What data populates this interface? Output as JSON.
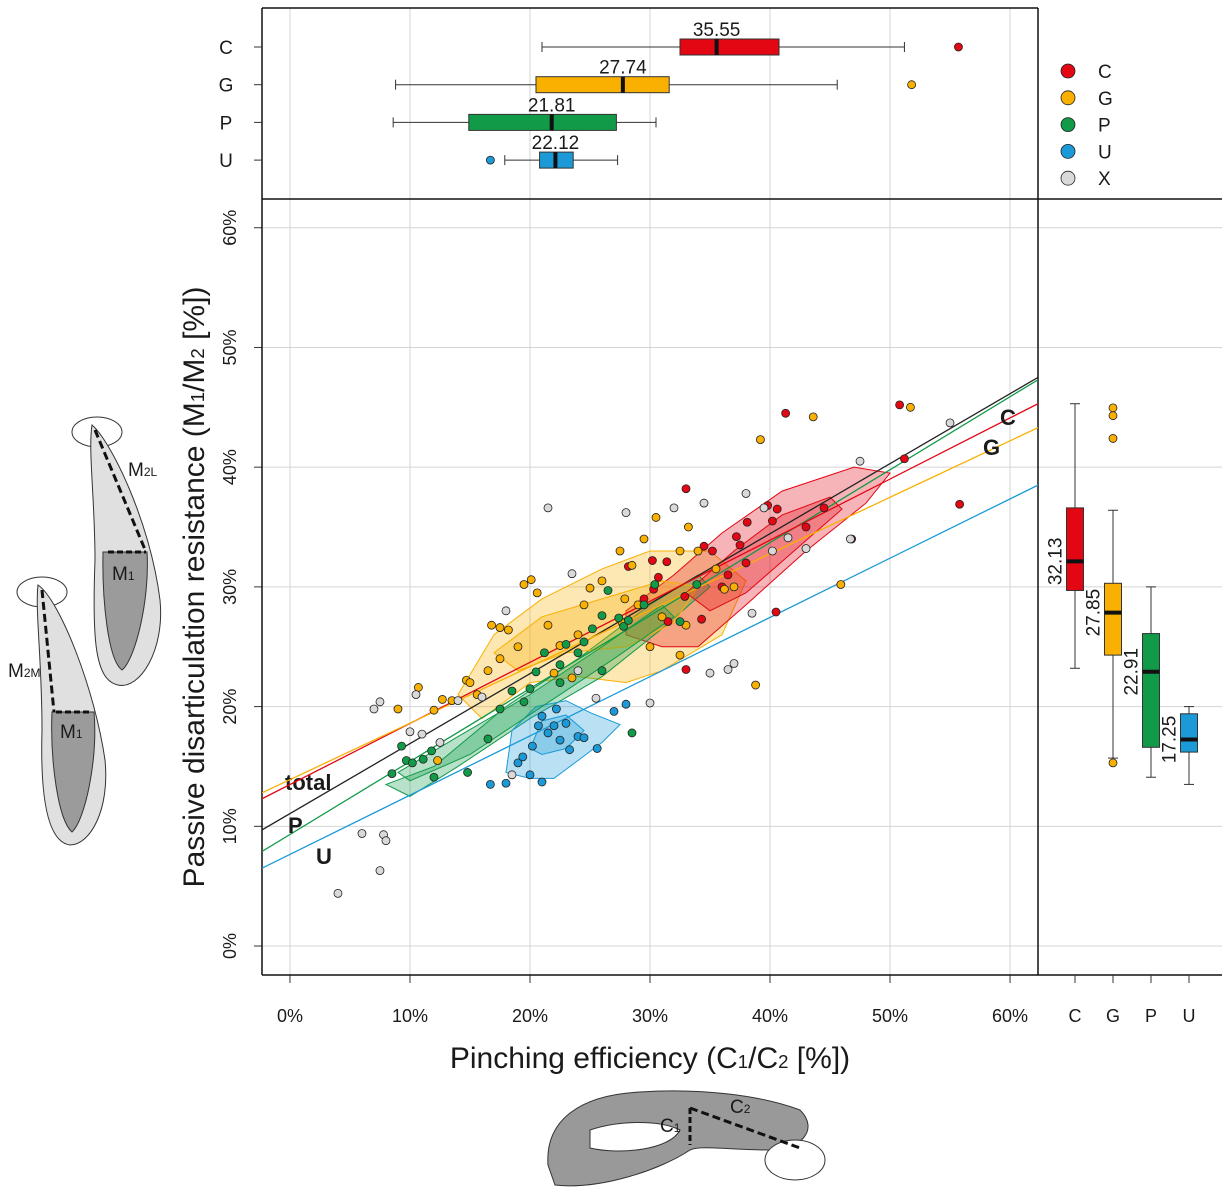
{
  "chart_data": [
    {
      "type": "scatter",
      "x_label": [
        "Pinching efficiency (C",
        "1",
        "/C",
        "2",
        " [%])"
      ],
      "y_label": [
        "Passive disarticulation resistance (M",
        "1",
        "/M",
        "2",
        " [%])"
      ],
      "xlim": [
        -2.33,
        62.33
      ],
      "ylim": [
        -2.42,
        62.4
      ],
      "xticks": [
        {
          "value": 0,
          "label": "0%"
        },
        {
          "value": 10,
          "label": "10%"
        },
        {
          "value": 20,
          "label": "20%"
        },
        {
          "value": 30,
          "label": "30%"
        },
        {
          "value": 40,
          "label": "40%"
        },
        {
          "value": 50,
          "label": "50%"
        },
        {
          "value": 60,
          "label": "60%"
        }
      ],
      "yticks": [
        {
          "value": 0,
          "label": "0%"
        },
        {
          "value": 10,
          "label": "10%"
        },
        {
          "value": 20,
          "label": "20%"
        },
        {
          "value": 30,
          "label": "30%"
        },
        {
          "value": 40,
          "label": "40%"
        },
        {
          "value": 50,
          "label": "50%"
        },
        {
          "value": 60,
          "label": "60%"
        }
      ],
      "grid": true,
      "legend": "top-right",
      "regions": [
        {
          "color": "#f9b000",
          "x": [
            14,
            17,
            21,
            26,
            30,
            35,
            38,
            36,
            31,
            28,
            24,
            20,
            16
          ],
          "y": [
            21,
            26,
            29,
            31.5,
            33,
            33,
            30.5,
            26,
            23,
            22,
            22.5,
            22,
            19
          ]
        },
        {
          "color": "#e30613",
          "x": [
            28,
            32,
            36,
            41,
            47,
            50,
            48,
            43,
            38,
            34,
            31,
            28
          ],
          "y": [
            28,
            31,
            34.5,
            38,
            40,
            39.5,
            37,
            33,
            28.5,
            25,
            25,
            26
          ]
        },
        {
          "color": "#119a48",
          "x": [
            8,
            12,
            18,
            24,
            30,
            34,
            35,
            31,
            26,
            20,
            14,
            10
          ],
          "y": [
            13.5,
            15,
            20,
            24,
            28.5,
            31,
            30,
            26.5,
            22.5,
            19,
            15,
            12.5
          ]
        },
        {
          "color": "#1b9ad7",
          "x": [
            18,
            18.5,
            20.5,
            23,
            25,
            27.5,
            26,
            24,
            22,
            20
          ],
          "y": [
            14.5,
            18,
            20,
            20.5,
            19.5,
            18.5,
            17,
            15.5,
            14,
            14
          ]
        },
        {
          "color": "#f9b000",
          "x": [
            17,
            21,
            26,
            31,
            34,
            32,
            28,
            23,
            19
          ],
          "y": [
            24.5,
            27.5,
            29,
            30.5,
            30,
            27,
            25,
            24.5,
            23
          ]
        },
        {
          "color": "#e30613",
          "x": [
            33,
            37,
            41,
            45,
            46,
            42,
            38,
            35
          ],
          "y": [
            29.5,
            33,
            36,
            37.5,
            36.5,
            33,
            29.5,
            28
          ]
        },
        {
          "color": "#119a48",
          "x": [
            9,
            14,
            20,
            26,
            31,
            32,
            27,
            21,
            15,
            10
          ],
          "y": [
            14.5,
            17.5,
            21,
            25,
            28.5,
            27.5,
            24,
            20,
            16,
            13.8
          ]
        },
        {
          "color": "#1b9ad7",
          "x": [
            20,
            21,
            23,
            24.5,
            23,
            21
          ],
          "y": [
            16.5,
            18.8,
            19.3,
            18,
            16.5,
            16
          ]
        }
      ],
      "fits": [
        {
          "label": "total",
          "color": "#222222",
          "x": [
            -2.33,
            62.33
          ],
          "y": [
            9.7,
            47.5
          ]
        },
        {
          "label": "P",
          "color": "#119a48",
          "x": [
            -2.33,
            62.33
          ],
          "y": [
            7.9,
            47.3
          ]
        },
        {
          "label": "U",
          "color": "#1b9ad7",
          "x": [
            -2.33,
            62.33
          ],
          "y": [
            6.5,
            38.5
          ]
        },
        {
          "label": "C",
          "color": "#e30613",
          "x": [
            -2.33,
            62.33
          ],
          "y": [
            12.3,
            45.3
          ]
        },
        {
          "label": "G",
          "color": "#f9b000",
          "x": [
            -2.33,
            62.33
          ],
          "y": [
            12.8,
            43.3
          ]
        }
      ],
      "series": [
        {
          "name": "C",
          "color": "#e30613",
          "x": [
            33,
            41.3,
            50.8,
            51.2,
            55.8,
            46.8,
            40.6,
            40.2,
            38.1,
            37.2,
            34.5,
            35.2,
            30.2,
            31.4,
            28.2,
            30.7,
            30.3,
            32.9,
            31.5,
            34.3,
            40.5,
            38,
            39.8,
            44.5,
            33,
            36,
            29.5,
            37.5,
            36.5,
            43
          ],
          "y": [
            38.2,
            44.5,
            45.2,
            40.7,
            36.9,
            34,
            36.5,
            35.5,
            35.4,
            34.2,
            33.4,
            33,
            32.2,
            32.1,
            31.7,
            30.8,
            29.8,
            29.2,
            27.1,
            27.3,
            27.9,
            32,
            36.8,
            36.6,
            23.1,
            30,
            29,
            33.5,
            31,
            35
          ]
        },
        {
          "name": "G",
          "color": "#f9b000",
          "x": [
            39.2,
            43.6,
            51.7,
            38.8,
            45.9,
            9,
            10.7,
            12,
            12.7,
            13.5,
            14.7,
            15,
            16.5,
            16.8,
            17.5,
            18.2,
            19,
            19.5,
            20.1,
            20.6,
            21.5,
            22.5,
            23.5,
            24.5,
            25,
            26,
            27.5,
            27.9,
            28.5,
            29.5,
            30.5,
            31,
            32.5,
            33.2,
            34,
            35.5,
            36.2,
            37,
            15.6,
            17.5,
            22,
            24,
            29,
            33,
            32.5,
            30,
            27.7,
            12.3
          ],
          "y": [
            42.3,
            44.2,
            45,
            21.8,
            30.2,
            19.8,
            21.6,
            19.7,
            20.6,
            20.5,
            22.2,
            22,
            23,
            26.8,
            26.6,
            26.4,
            25,
            30.2,
            30.6,
            29.5,
            26.8,
            25.1,
            22.4,
            28.5,
            29.9,
            30.5,
            33,
            29,
            31.8,
            34,
            35.8,
            27.5,
            33,
            35,
            33,
            31.5,
            29.8,
            30,
            21,
            24,
            22.8,
            26,
            28.5,
            26.8,
            24.3,
            25,
            27,
            15.5
          ]
        },
        {
          "name": "P",
          "color": "#119a48",
          "x": [
            8.5,
            9.3,
            9.7,
            10.2,
            11.1,
            11.8,
            12,
            14.8,
            16.5,
            17.5,
            18.5,
            19.5,
            20.5,
            21.2,
            22.5,
            23,
            24.5,
            25.2,
            26,
            26.5,
            27.4,
            27.8,
            28.2,
            29.5,
            30.4,
            32.5,
            33.9,
            26,
            22.5,
            20,
            28.5,
            24
          ],
          "y": [
            14.4,
            16.7,
            15.5,
            15.3,
            15.6,
            16.3,
            14.1,
            14.5,
            17.3,
            19.8,
            21.3,
            20.4,
            22.9,
            24.5,
            23.5,
            25.2,
            25.4,
            26.5,
            27.6,
            29.7,
            27.4,
            26.7,
            27.2,
            28.5,
            30.2,
            27.1,
            30.2,
            23,
            22,
            21.5,
            17.8,
            24.5
          ]
        },
        {
          "name": "U",
          "color": "#1b9ad7",
          "x": [
            16.7,
            18,
            19,
            19.4,
            20.2,
            20.7,
            21,
            21.5,
            22,
            22.5,
            23,
            23.3,
            24,
            24.5,
            21,
            25.6,
            27,
            28,
            22.2,
            20
          ],
          "y": [
            13.5,
            13.6,
            15.3,
            15.8,
            16.7,
            18.4,
            19.2,
            17.8,
            18.4,
            17.2,
            18.6,
            16.4,
            17.5,
            17.4,
            13.7,
            16.5,
            19.6,
            20.2,
            19.8,
            14.3
          ]
        },
        {
          "name": "X",
          "color": "#d9d9d9",
          "x": [
            4,
            7.5,
            6,
            7.8,
            8,
            7,
            7.5,
            10.5,
            11,
            10,
            12.5,
            14,
            16,
            21.5,
            23.5,
            24,
            25.5,
            28,
            32,
            34.5,
            38,
            38.5,
            39.5,
            40.2,
            41.5,
            43,
            46.7,
            47.5,
            55,
            36.5,
            37,
            18.5,
            30,
            35,
            18
          ],
          "y": [
            4.4,
            6.3,
            9.4,
            9.3,
            8.8,
            19.8,
            20.4,
            21,
            17.7,
            17.9,
            17,
            20.5,
            20.8,
            36.6,
            31.1,
            23,
            20.7,
            36.2,
            36.6,
            37,
            37.8,
            27.8,
            36.6,
            33,
            34.1,
            33.2,
            34,
            40.5,
            43.7,
            23.1,
            23.6,
            14.3,
            20.3,
            22.8,
            28
          ]
        }
      ]
    },
    {
      "type": "box",
      "orientation": "horizontal",
      "xlim": [
        -2.33,
        62.33
      ],
      "categories": [
        "C",
        "G",
        "P",
        "U"
      ],
      "colors": [
        "#e30613",
        "#f9b000",
        "#119a48",
        "#1b9ad7"
      ],
      "whislo": [
        21,
        8.8,
        8.6,
        17.9
      ],
      "q1": [
        32.5,
        20.5,
        14.9,
        20.8
      ],
      "median": [
        35.55,
        27.74,
        21.81,
        22.12
      ],
      "q3": [
        40.75,
        31.6,
        27.2,
        23.6
      ],
      "whishi": [
        51.2,
        45.6,
        30.5,
        27.3
      ],
      "outliers": [
        [
          55.7
        ],
        [
          51.8
        ],
        [],
        [
          16.7
        ]
      ]
    },
    {
      "type": "box",
      "orientation": "vertical",
      "ylim": [
        -2.42,
        62.4
      ],
      "categories": [
        "C",
        "G",
        "P",
        "U"
      ],
      "colors": [
        "#e30613",
        "#f9b000",
        "#119a48",
        "#1b9ad7"
      ],
      "whislo": [
        23.2,
        15.7,
        14.1,
        13.5
      ],
      "q1": [
        29.7,
        24.3,
        16.6,
        16.2
      ],
      "median": [
        32.13,
        27.85,
        22.91,
        17.25
      ],
      "q3": [
        36.6,
        30.3,
        26.1,
        19.4
      ],
      "whishi": [
        45.3,
        36.4,
        30,
        20
      ],
      "outliers": [
        [],
        [
          44.95,
          44.3,
          42.4,
          15.3
        ],
        [],
        []
      ]
    }
  ],
  "illustration_labels": [
    [
      "M",
      "2L"
    ],
    [
      "M",
      "1"
    ],
    [
      "M",
      "2M"
    ],
    [
      "M",
      "1"
    ],
    [
      "C",
      "1"
    ],
    [
      "C",
      "2"
    ]
  ]
}
